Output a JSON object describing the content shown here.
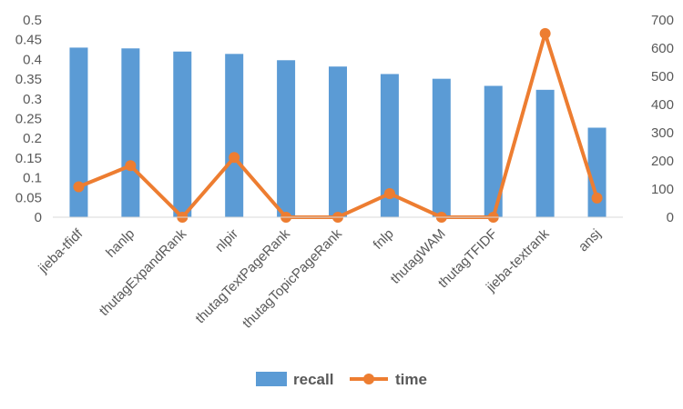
{
  "chart_data": {
    "type": "bar",
    "categories": [
      "jieba-tfidf",
      "hanlp",
      "thutagExpandRank",
      "nlpir",
      "thutagTextPageRank",
      "thutagTopicPageRank",
      "fnlp",
      "thutagWAM",
      "thutagTFIDF",
      "jieba-textrank",
      "ansj"
    ],
    "series": [
      {
        "name": "recall",
        "type": "bar",
        "axis": "left",
        "color": "#5B9BD5",
        "values": [
          0.43,
          0.428,
          0.42,
          0.414,
          0.398,
          0.382,
          0.363,
          0.351,
          0.333,
          0.323,
          0.227
        ]
      },
      {
        "name": "time",
        "type": "line",
        "axis": "right",
        "color": "#ED7D31",
        "values": [
          108,
          183,
          0,
          212,
          0,
          0,
          84,
          0,
          0,
          652,
          68
        ]
      }
    ],
    "y_left": {
      "min": 0,
      "max": 0.5,
      "ticks": [
        "0",
        "0.05",
        "0.1",
        "0.15",
        "0.2",
        "0.25",
        "0.3",
        "0.35",
        "0.4",
        "0.45",
        "0.5"
      ]
    },
    "y_right": {
      "min": 0,
      "max": 700,
      "ticks": [
        "0",
        "100",
        "200",
        "300",
        "400",
        "500",
        "600",
        "700"
      ]
    },
    "grid": false,
    "legend_position": "bottom"
  }
}
